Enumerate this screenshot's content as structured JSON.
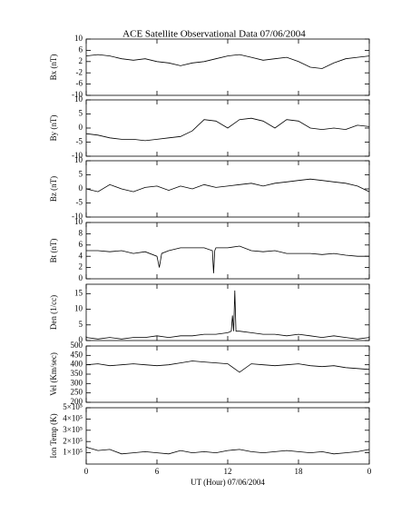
{
  "chart_data": [
    {
      "type": "line",
      "title": "ACE Satellite Observational Data   07/06/2004",
      "ylabel": "Bx (nT)",
      "x": [
        0,
        1,
        2,
        3,
        4,
        5,
        6,
        7,
        8,
        9,
        10,
        11,
        12,
        13,
        14,
        15,
        16,
        17,
        18,
        19,
        20,
        21,
        22,
        23,
        24
      ],
      "values": [
        4,
        4.5,
        4,
        3,
        2.5,
        3,
        2,
        1.5,
        0.5,
        1.5,
        2,
        3,
        4,
        4.5,
        3.5,
        2.5,
        3,
        3.5,
        2,
        0,
        -0.5,
        1.5,
        3,
        3.5,
        4
      ],
      "ylim": [
        -10,
        10
      ],
      "yticks": [
        -10,
        -6,
        -2,
        2,
        6,
        10
      ],
      "xlim": [
        0,
        24
      ],
      "xticks": [
        0,
        6,
        12,
        18,
        {
          "value": 24,
          "label": "0"
        }
      ]
    },
    {
      "type": "line",
      "ylabel": "By (nT)",
      "x": [
        0,
        1,
        2,
        3,
        4,
        5,
        6,
        7,
        8,
        9,
        10,
        11,
        12,
        13,
        14,
        15,
        16,
        17,
        18,
        19,
        20,
        21,
        22,
        23,
        24
      ],
      "values": [
        -2,
        -2.5,
        -3.5,
        -4,
        -4,
        -4.5,
        -4,
        -3.5,
        -3,
        -1,
        3,
        2.5,
        0,
        3,
        3.5,
        2.5,
        0,
        3,
        2.5,
        0,
        -0.5,
        0,
        -0.5,
        1,
        0.5
      ],
      "ylim": [
        -10,
        10
      ],
      "yticks": [
        -10,
        -5,
        0,
        5,
        10
      ],
      "xlim": [
        0,
        24
      ],
      "xticks": [
        0,
        6,
        12,
        18,
        {
          "value": 24,
          "label": "0"
        }
      ]
    },
    {
      "type": "line",
      "ylabel": "Bz (nT)",
      "x": [
        0,
        1,
        2,
        3,
        4,
        5,
        6,
        7,
        8,
        9,
        10,
        11,
        12,
        13,
        14,
        15,
        16,
        17,
        18,
        19,
        20,
        21,
        22,
        23,
        24
      ],
      "values": [
        0,
        -1,
        1.5,
        0,
        -1,
        0.5,
        1,
        -0.5,
        1,
        0,
        1.5,
        0.5,
        1,
        1.5,
        2,
        1,
        2,
        2.5,
        3,
        3.5,
        3,
        2.5,
        2,
        1,
        -1
      ],
      "ylim": [
        -10,
        10
      ],
      "yticks": [
        -10,
        -5,
        0,
        5,
        10
      ],
      "xlim": [
        0,
        24
      ],
      "xticks": [
        0,
        6,
        12,
        18,
        {
          "value": 24,
          "label": "0"
        }
      ]
    },
    {
      "type": "line",
      "ylabel": "Bt (nT)",
      "x": [
        0,
        1,
        2,
        3,
        4,
        5,
        6,
        6.2,
        6.4,
        7,
        8,
        9,
        10,
        10.7,
        10.8,
        10.9,
        11,
        12,
        13,
        14,
        15,
        16,
        17,
        18,
        19,
        20,
        21,
        22,
        23,
        24
      ],
      "values": [
        5,
        5,
        4.8,
        5,
        4.5,
        4.8,
        4,
        2,
        4.5,
        5,
        5.5,
        5.5,
        5.5,
        5,
        1,
        5,
        5.5,
        5.5,
        5.8,
        5,
        4.8,
        5,
        4.5,
        4.5,
        4.5,
        4.3,
        4.5,
        4.2,
        4,
        4
      ],
      "ylim": [
        0,
        10
      ],
      "yticks": [
        0,
        2,
        4,
        6,
        8,
        10
      ],
      "xlim": [
        0,
        24
      ],
      "xticks": [
        0,
        6,
        12,
        18,
        {
          "value": 24,
          "label": "0"
        }
      ]
    },
    {
      "type": "line",
      "ylabel": "Den (1/cc)",
      "x": [
        0,
        1,
        2,
        3,
        4,
        5,
        6,
        7,
        8,
        9,
        10,
        11,
        12,
        12.3,
        12.4,
        12.5,
        12.6,
        12.7,
        12.8,
        13,
        14,
        15,
        16,
        17,
        18,
        19,
        20,
        21,
        22,
        23,
        24
      ],
      "values": [
        1,
        0.5,
        1,
        0.5,
        1,
        1,
        1.5,
        1,
        1.5,
        1.5,
        2,
        2,
        2.5,
        3,
        8,
        3,
        16,
        3,
        3,
        3,
        2.5,
        2,
        2,
        1.5,
        2,
        1.5,
        1,
        1.5,
        1,
        0.5,
        1
      ],
      "ylim": [
        0,
        18
      ],
      "yticks": [
        0,
        5,
        10,
        15
      ],
      "xlim": [
        0,
        24
      ],
      "xticks": [
        0,
        6,
        12,
        18,
        {
          "value": 24,
          "label": "0"
        }
      ]
    },
    {
      "type": "line",
      "ylabel": "Vel (Km/sec)",
      "x": [
        0,
        1,
        2,
        3,
        4,
        5,
        6,
        7,
        8,
        9,
        10,
        11,
        12,
        13,
        14,
        15,
        16,
        17,
        18,
        19,
        20,
        21,
        22,
        23,
        24
      ],
      "values": [
        400,
        405,
        395,
        400,
        405,
        400,
        395,
        400,
        410,
        420,
        415,
        410,
        405,
        360,
        405,
        400,
        395,
        400,
        405,
        395,
        390,
        395,
        385,
        380,
        375
      ],
      "ylim": [
        200,
        500
      ],
      "yticks": [
        200,
        250,
        300,
        350,
        400,
        450,
        500
      ],
      "xlim": [
        0,
        24
      ],
      "xticks": [
        0,
        6,
        12,
        18,
        {
          "value": 24,
          "label": "0"
        }
      ]
    },
    {
      "type": "line",
      "ylabel": "Ion Temp (K)",
      "xlabel": "UT (Hour)   07/06/2004",
      "x": [
        0,
        1,
        2,
        3,
        4,
        5,
        6,
        7,
        8,
        9,
        10,
        11,
        12,
        13,
        14,
        15,
        16,
        17,
        18,
        19,
        20,
        21,
        22,
        23,
        24
      ],
      "values": [
        150000,
        120000,
        130000,
        90000,
        100000,
        110000,
        100000,
        90000,
        120000,
        100000,
        110000,
        100000,
        120000,
        130000,
        110000,
        100000,
        110000,
        120000,
        110000,
        100000,
        110000,
        90000,
        100000,
        110000,
        130000
      ],
      "ylim": [
        0,
        500000
      ],
      "yticks": [
        {
          "value": 100000,
          "label": "1×10⁵"
        },
        {
          "value": 200000,
          "label": "2×10⁵"
        },
        {
          "value": 300000,
          "label": "3×10⁵"
        },
        {
          "value": 400000,
          "label": "4×10⁵"
        },
        {
          "value": 500000,
          "label": "5×10⁵"
        }
      ],
      "xlim": [
        0,
        24
      ],
      "xticks": [
        0,
        6,
        12,
        18,
        {
          "value": 24,
          "label": "0"
        }
      ]
    }
  ]
}
